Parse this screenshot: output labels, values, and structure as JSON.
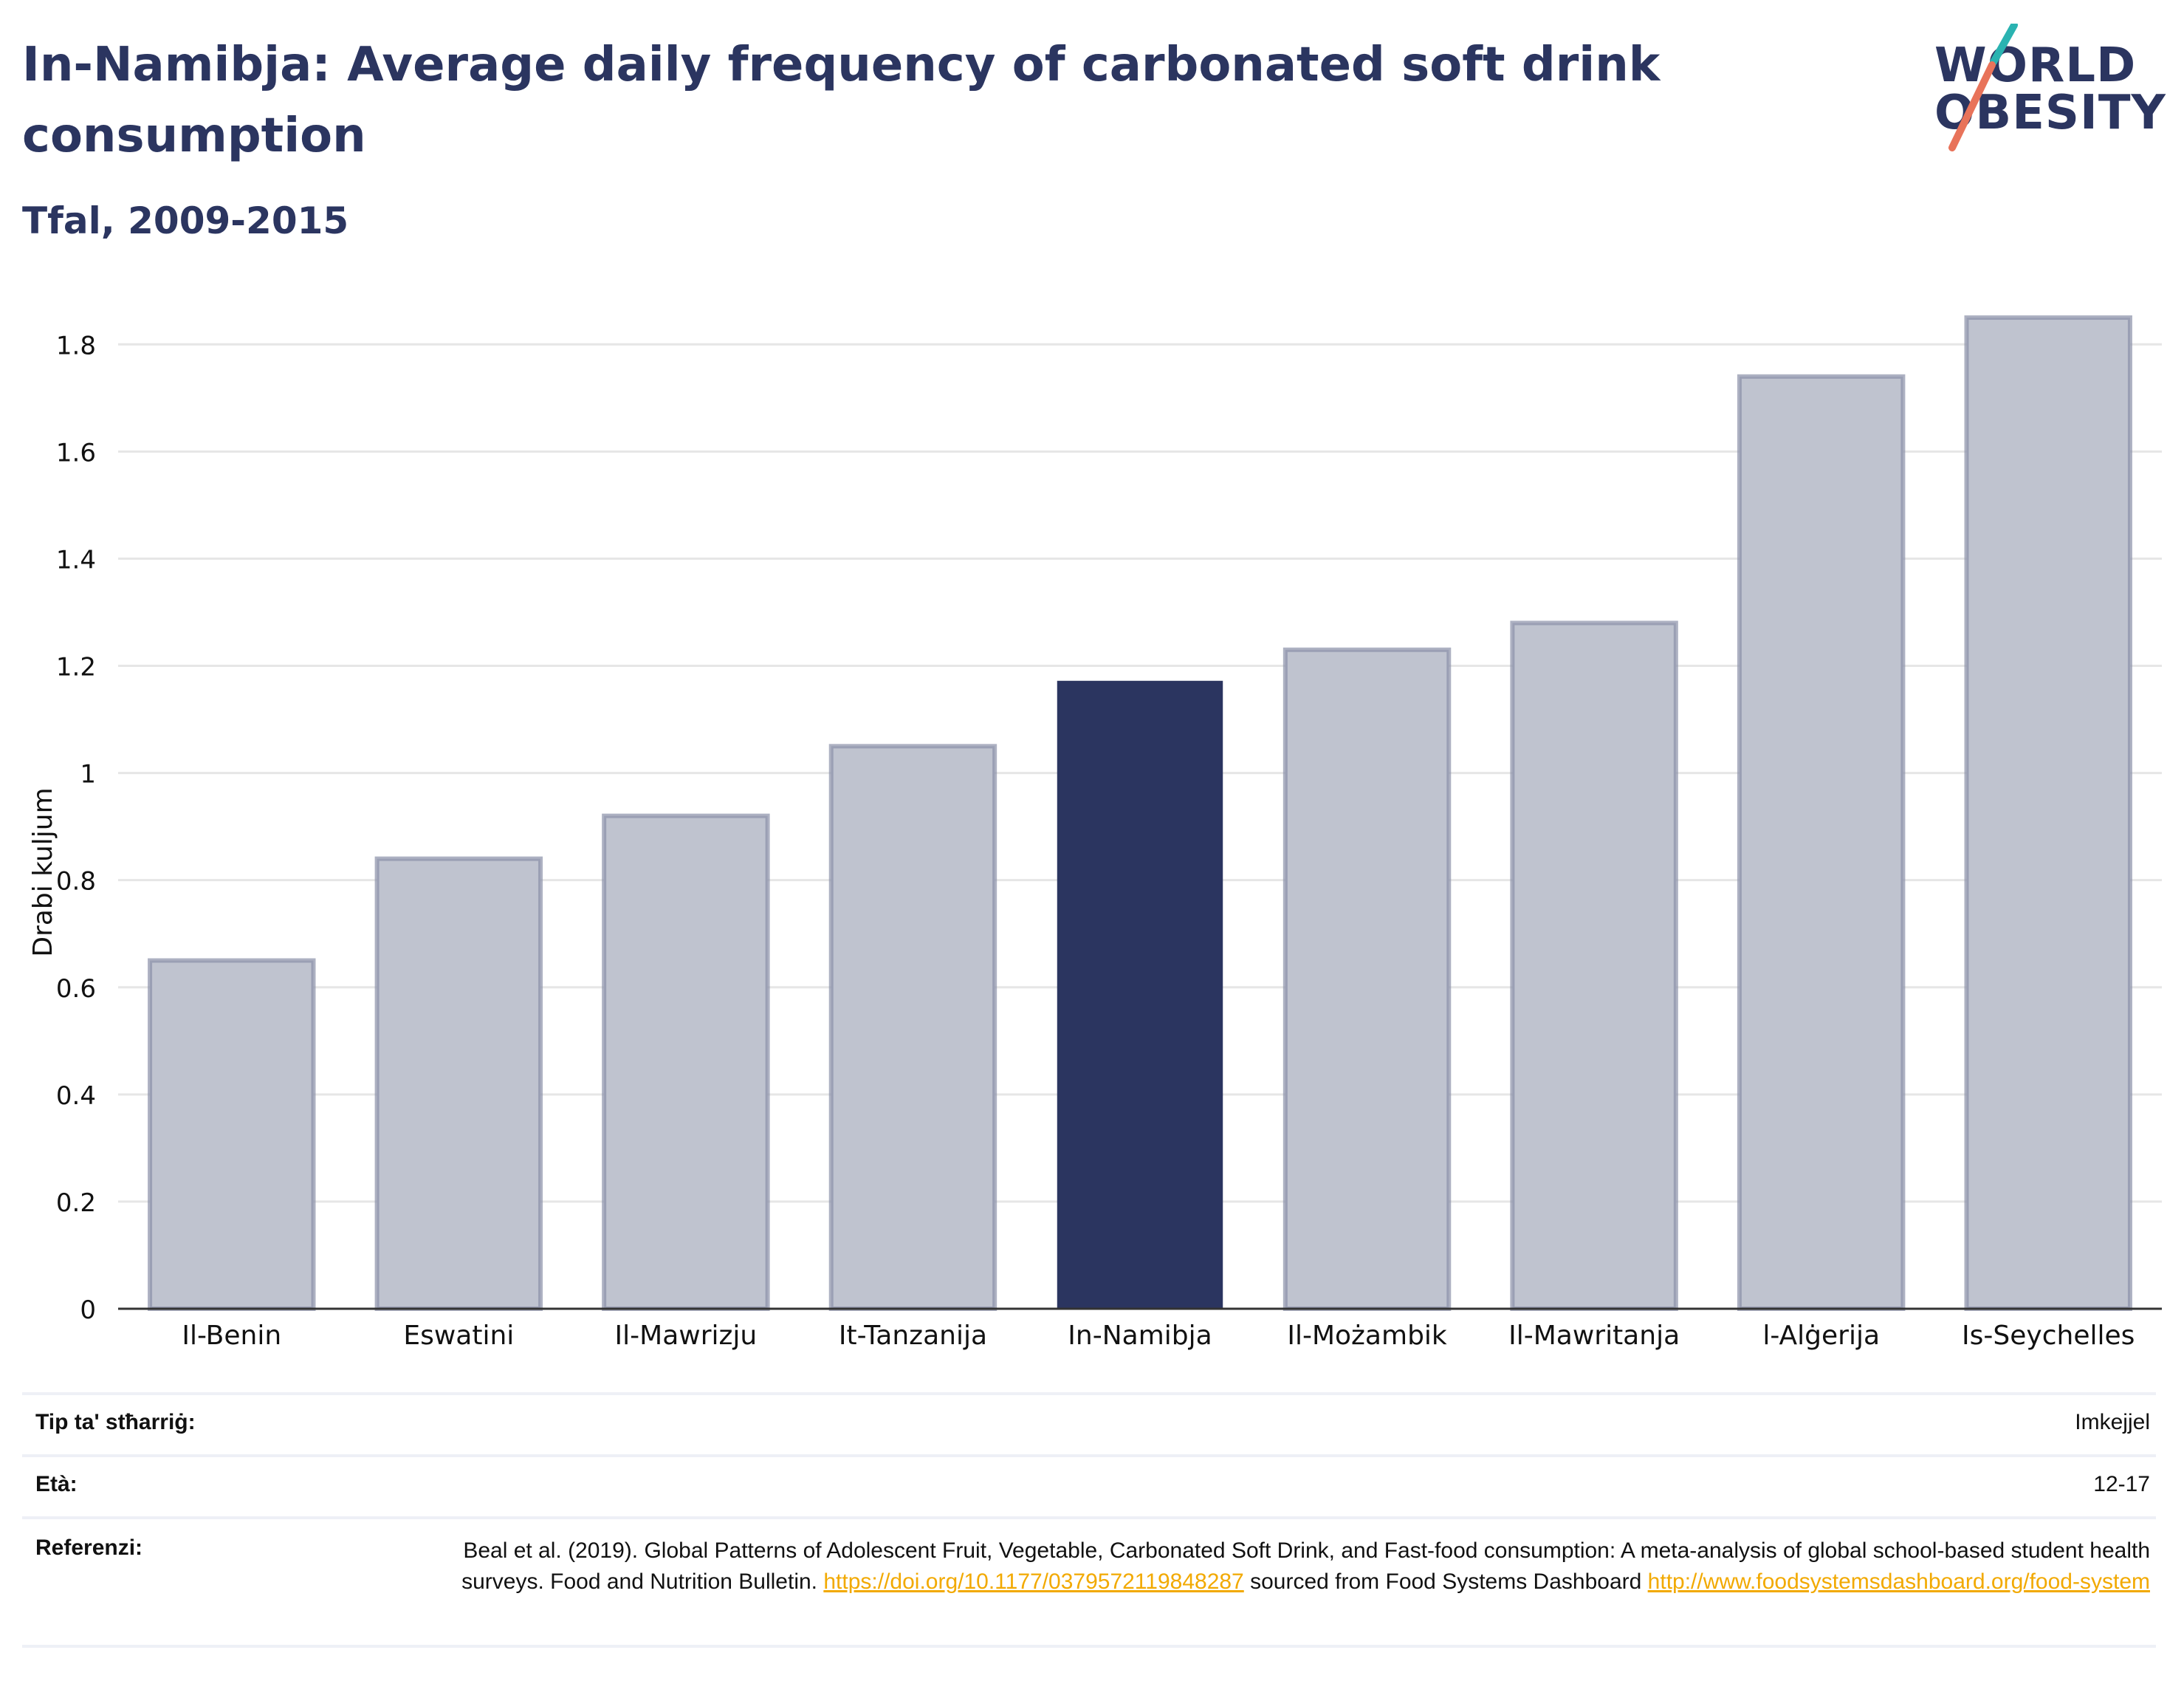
{
  "header": {
    "title": "In-Namibja: Average daily frequency of carbonated soft drink consumption",
    "subtitle": "Tfal, 2009-2015"
  },
  "logo": {
    "line1": "WORLD",
    "line2": "OBESITY",
    "accent_teal": "#2ab3b1",
    "accent_coral": "#e8735a"
  },
  "colors": {
    "highlight": "#2b3560",
    "bar_fill": "#bfc3cf",
    "bar_stroke": "#8a90a8",
    "grid": "#e6e6e6"
  },
  "chart_data": {
    "type": "bar",
    "title": "",
    "xlabel": "",
    "ylabel": "Drabi kuljum",
    "ylim": [
      0,
      1.85
    ],
    "yticks": [
      0,
      0.2,
      0.4,
      0.6,
      0.8,
      1,
      1.2,
      1.4,
      1.6,
      1.8
    ],
    "ytick_labels": [
      "0",
      "0.2",
      "0.4",
      "0.6",
      "0.8",
      "1",
      "1.2",
      "1.4",
      "1.6",
      "1.8"
    ],
    "grid": true,
    "categories": [
      "Il-Benin",
      "Eswatini",
      "Il-Mawrizju",
      "It-Tanzanija",
      "In-Namibja",
      "Il-Możambik",
      "Il-Mawritanja",
      "l-Alġerija",
      "Is-Seychelles"
    ],
    "values": [
      0.65,
      0.84,
      0.92,
      1.05,
      1.17,
      1.23,
      1.28,
      1.74,
      1.85
    ],
    "highlight": "In-Namibja"
  },
  "info": {
    "type_label": "Tip ta' stħarriġ:",
    "type_value": "Imkejjel",
    "age_label": "Età:",
    "age_value": "12-17",
    "ref_label": "Referenzi:",
    "ref_text1": "Beal et al. (2019). Global Patterns of Adolescent Fruit, Vegetable, Carbonated Soft Drink, and Fast-food consumption: A meta-analysis of global school-based student health surveys. Food and Nutrition Bulletin.",
    "ref_link1": "https://doi.org/10.1177/0379572119848287",
    "ref_text2": "sourced from Food Systems Dashboard",
    "ref_link2": "http://www.foodsystemsdashboard.org/food-system"
  }
}
